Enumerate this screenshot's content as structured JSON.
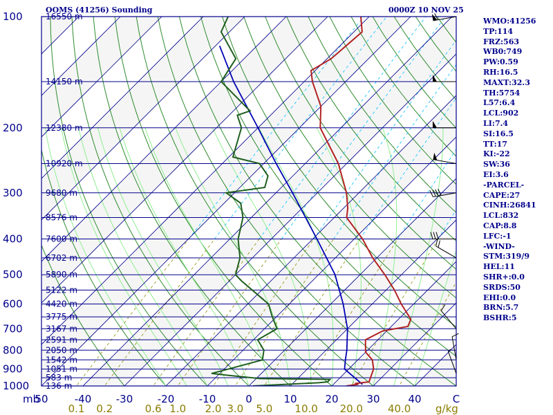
{
  "header": {
    "station": "OOMS (41256) Sounding",
    "time": "0000Z 10 NOV 25"
  },
  "indices": [
    "WMO:41256",
    "TP:114",
    "FRZ:563",
    "WB0:749",
    "PW:0.59",
    "RH:16.5",
    "MAXT:32.3",
    "TH:5754",
    "L57:6.4",
    "LCL:902",
    "LI:7.4",
    "SI:16.5",
    "TT:17",
    "KI:-22",
    "SW:36",
    "EI:3.6",
    "-PARCEL-",
    "CAPE:27",
    "CINH:26841",
    "LCL:832",
    "CAP:8.8",
    "LFC:-1",
    "-WIND-",
    "STM:319/9",
    "HEL:11",
    "SHR+:0.0",
    "SRDS:50",
    "EHI:0.0",
    "BRN:5.7",
    "BSHR:5"
  ],
  "colors": {
    "frame": "#00008b",
    "isobar": "#00008b",
    "isotherm": "#00008b",
    "dry_adiabat": "#2e8b2e",
    "moist_adiabat": "#90ee90",
    "mixing_ratio": "#8b8b00",
    "mixing_ratio_top": "#00bfff",
    "temperature": "#b22222",
    "dewpoint": "#1e5e1e",
    "parcel": "#0000b4",
    "background": "#ffffff",
    "shade": "#f5f5f5"
  },
  "chart_data": {
    "type": "skew-t",
    "y_scale": "log-pressure",
    "ylim": [
      1000,
      100
    ],
    "xlim": [
      -50,
      50
    ],
    "x_unit_label": "C",
    "y_unit_label": "mb",
    "pressure_ticks": [
      100,
      200,
      300,
      400,
      500,
      600,
      700,
      800,
      900,
      1000
    ],
    "temperature_ticks": [
      -50,
      -40,
      -30,
      -20,
      -10,
      0,
      10,
      20,
      30,
      40,
      50
    ],
    "temperature_tick_labels": [
      "50",
      "-40",
      "-30",
      "-20",
      "-10",
      "0",
      "10",
      "20",
      "30",
      "40",
      "C"
    ],
    "height_labels": [
      {
        "p": 100,
        "h": "16550 m"
      },
      {
        "p": 150,
        "h": "14150 m"
      },
      {
        "p": 200,
        "h": "12380 m"
      },
      {
        "p": 250,
        "h": "10920 m"
      },
      {
        "p": 300,
        "h": "9680 m"
      },
      {
        "p": 350,
        "h": "8576 m"
      },
      {
        "p": 400,
        "h": "7600 m"
      },
      {
        "p": 450,
        "h": "6702 m"
      },
      {
        "p": 500,
        "h": "5890 m"
      },
      {
        "p": 550,
        "h": "5122 m"
      },
      {
        "p": 600,
        "h": "4420 m"
      },
      {
        "p": 650,
        "h": "3775 m"
      },
      {
        "p": 700,
        "h": "3167 m"
      },
      {
        "p": 750,
        "h": "2591 m"
      },
      {
        "p": 800,
        "h": "2050 m"
      },
      {
        "p": 850,
        "h": "1542 m"
      },
      {
        "p": 900,
        "h": "1051 m"
      },
      {
        "p": 950,
        "h": "583 m"
      },
      {
        "p": 1000,
        "h": "136 m"
      }
    ],
    "mixing_ratio_labels": [
      {
        "w": 0.1,
        "label": "0.1"
      },
      {
        "w": 0.2,
        "label": "0.2"
      },
      {
        "w": 0.6,
        "label": "0.6"
      },
      {
        "w": 1.0,
        "label": "1.0"
      },
      {
        "w": 2.0,
        "label": "2.0"
      },
      {
        "w": 3.0,
        "label": "3.0"
      },
      {
        "w": 5.0,
        "label": "5.0"
      },
      {
        "w": 10.0,
        "label": "10.0"
      },
      {
        "w": 20.0,
        "label": "20.0"
      },
      {
        "w": 40.0,
        "label": "40.0"
      }
    ],
    "mixing_ratio_unit": "g/kg",
    "temperature_profile": [
      {
        "p": 1000,
        "t": 23.5
      },
      {
        "p": 990,
        "t": 26
      },
      {
        "p": 985,
        "t": 25
      },
      {
        "p": 975,
        "t": 28
      },
      {
        "p": 900,
        "t": 26
      },
      {
        "p": 850,
        "t": 23.5
      },
      {
        "p": 810,
        "t": 20
      },
      {
        "p": 750,
        "t": 17
      },
      {
        "p": 710,
        "t": 19
      },
      {
        "p": 690,
        "t": 24
      },
      {
        "p": 660,
        "t": 23
      },
      {
        "p": 600,
        "t": 17
      },
      {
        "p": 550,
        "t": 12
      },
      {
        "p": 500,
        "t": 6
      },
      {
        "p": 450,
        "t": -1
      },
      {
        "p": 400,
        "t": -8
      },
      {
        "p": 350,
        "t": -17
      },
      {
        "p": 330,
        "t": -19
      },
      {
        "p": 300,
        "t": -23
      },
      {
        "p": 250,
        "t": -32
      },
      {
        "p": 200,
        "t": -45
      },
      {
        "p": 175,
        "t": -50
      },
      {
        "p": 150,
        "t": -58
      },
      {
        "p": 140,
        "t": -61
      },
      {
        "p": 130,
        "t": -59
      },
      {
        "p": 110,
        "t": -58
      },
      {
        "p": 100,
        "t": -62
      }
    ],
    "dewpoint_profile": [
      {
        "p": 1000,
        "t": 1
      },
      {
        "p": 980,
        "t": 16
      },
      {
        "p": 975,
        "t": 18
      },
      {
        "p": 960,
        "t": 18
      },
      {
        "p": 955,
        "t": 1
      },
      {
        "p": 935,
        "t": -8
      },
      {
        "p": 925,
        "t": -12
      },
      {
        "p": 900,
        "t": -9
      },
      {
        "p": 850,
        "t": -3
      },
      {
        "p": 800,
        "t": -5
      },
      {
        "p": 750,
        "t": -9
      },
      {
        "p": 700,
        "t": -7
      },
      {
        "p": 650,
        "t": -11
      },
      {
        "p": 600,
        "t": -15
      },
      {
        "p": 520,
        "t": -27
      },
      {
        "p": 500,
        "t": -30
      },
      {
        "p": 450,
        "t": -33
      },
      {
        "p": 400,
        "t": -38
      },
      {
        "p": 350,
        "t": -42
      },
      {
        "p": 320,
        "t": -46
      },
      {
        "p": 300,
        "t": -52
      },
      {
        "p": 290,
        "t": -44
      },
      {
        "p": 270,
        "t": -46
      },
      {
        "p": 250,
        "t": -51
      },
      {
        "p": 240,
        "t": -59
      },
      {
        "p": 200,
        "t": -64
      },
      {
        "p": 185,
        "t": -68
      },
      {
        "p": 180,
        "t": -66
      },
      {
        "p": 150,
        "t": -80
      },
      {
        "p": 130,
        "t": -82
      },
      {
        "p": 110,
        "t": -92
      },
      {
        "p": 100,
        "t": -94
      }
    ],
    "parcel_profile": [
      {
        "p": 990,
        "t": 27
      },
      {
        "p": 900,
        "t": 19
      },
      {
        "p": 850,
        "t": 17
      },
      {
        "p": 800,
        "t": 15
      },
      {
        "p": 700,
        "t": 10
      },
      {
        "p": 600,
        "t": 3
      },
      {
        "p": 500,
        "t": -6
      },
      {
        "p": 400,
        "t": -19
      },
      {
        "p": 300,
        "t": -36
      },
      {
        "p": 250,
        "t": -47
      },
      {
        "p": 200,
        "t": -60
      },
      {
        "p": 150,
        "t": -77
      },
      {
        "p": 120,
        "t": -89
      }
    ],
    "wind_barbs": [
      {
        "p": 100,
        "dir": 260,
        "spd": 60
      },
      {
        "p": 150,
        "dir": 270,
        "spd": 50
      },
      {
        "p": 200,
        "dir": 270,
        "spd": 50
      },
      {
        "p": 250,
        "dir": 280,
        "spd": 50
      },
      {
        "p": 300,
        "dir": 260,
        "spd": 40
      },
      {
        "p": 400,
        "dir": 270,
        "spd": 30
      },
      {
        "p": 450,
        "dir": 300,
        "spd": 20
      },
      {
        "p": 700,
        "dir": 320,
        "spd": 10
      },
      {
        "p": 850,
        "dir": 350,
        "spd": 10
      },
      {
        "p": 925,
        "dir": 340,
        "spd": 5
      }
    ]
  }
}
